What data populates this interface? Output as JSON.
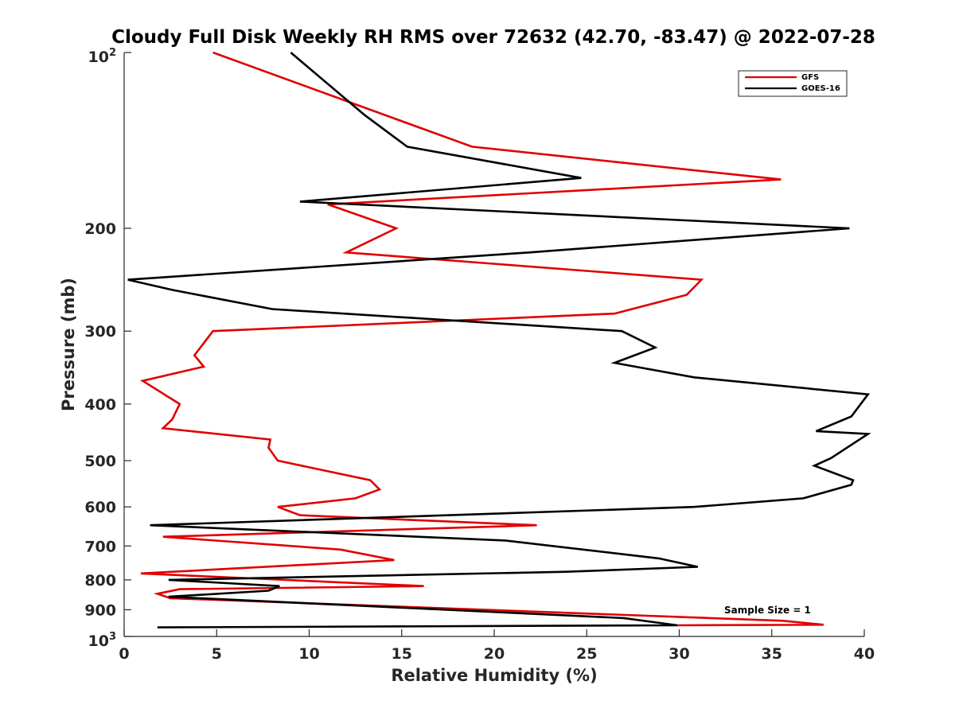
{
  "chart_data": {
    "type": "line",
    "title": "Cloudy Full Disk Weekly RH RMS over 72632 (42.70, -83.47) @ 2022-07-28",
    "xlabel": "Relative Humidity (%)",
    "ylabel": "Pressure (mb)",
    "xlim": [
      0,
      40
    ],
    "ylim": [
      100,
      1000
    ],
    "y_scale": "log",
    "y_reversed": true,
    "x_ticks": [
      "0",
      "5",
      "10",
      "15",
      "20",
      "25",
      "30",
      "35",
      "40"
    ],
    "y_ticks": [
      {
        "value": 100,
        "base": "10",
        "exp": "2"
      },
      {
        "value": 200,
        "label": "200"
      },
      {
        "value": 300,
        "label": "300"
      },
      {
        "value": 400,
        "label": "400"
      },
      {
        "value": 500,
        "label": "500"
      },
      {
        "value": 600,
        "label": "600"
      },
      {
        "value": 700,
        "label": "700"
      },
      {
        "value": 800,
        "label": "800"
      },
      {
        "value": 900,
        "label": "900"
      },
      {
        "value": 1000,
        "base": "10",
        "exp": "3"
      }
    ],
    "grid": false,
    "legend_position": "top-right",
    "annotation": "Sample Size = 1",
    "series": [
      {
        "name": "GFS",
        "color": "#e00000",
        "x": [
          4.8,
          18.8,
          35.5,
          11.0,
          14.7,
          12.0,
          31.2,
          30.4,
          26.5,
          4.8,
          3.8,
          4.3,
          1.0,
          3.0,
          2.6,
          2.1,
          7.9,
          7.8,
          8.3,
          13.3,
          13.8,
          12.5,
          8.3,
          9.5,
          22.3,
          2.1,
          11.7,
          14.6,
          0.9,
          16.2,
          3.0,
          1.8,
          2.5,
          35.6,
          37.8,
          29.9
        ],
        "y": [
          100,
          145,
          165,
          182,
          200,
          220,
          245,
          260,
          280,
          300,
          330,
          345,
          365,
          400,
          425,
          440,
          460,
          475,
          500,
          540,
          560,
          580,
          600,
          620,
          645,
          675,
          710,
          740,
          780,
          820,
          830,
          845,
          860,
          940,
          955,
          957
        ]
      },
      {
        "name": "GOES-16",
        "color": "#000000",
        "x": [
          9.0,
          13.0,
          15.3,
          24.7,
          9.5,
          39.2,
          21.9,
          0.2,
          2.6,
          8.0,
          26.9,
          28.7,
          26.5,
          30.8,
          40.2,
          39.3,
          37.4,
          40.2,
          38.2,
          37.3,
          39.4,
          39.3,
          36.7,
          30.8,
          1.4,
          20.6,
          28.9,
          31.0,
          23.9,
          2.4,
          8.4,
          7.8,
          2.4,
          27.0,
          29.9,
          1.8
        ],
        "y": [
          100,
          128,
          145,
          164,
          180,
          200,
          220,
          245,
          255,
          275,
          300,
          320,
          340,
          360,
          385,
          420,
          445,
          450,
          495,
          510,
          540,
          550,
          580,
          600,
          645,
          685,
          735,
          760,
          775,
          800,
          820,
          835,
          855,
          930,
          957,
          965
        ]
      }
    ]
  }
}
